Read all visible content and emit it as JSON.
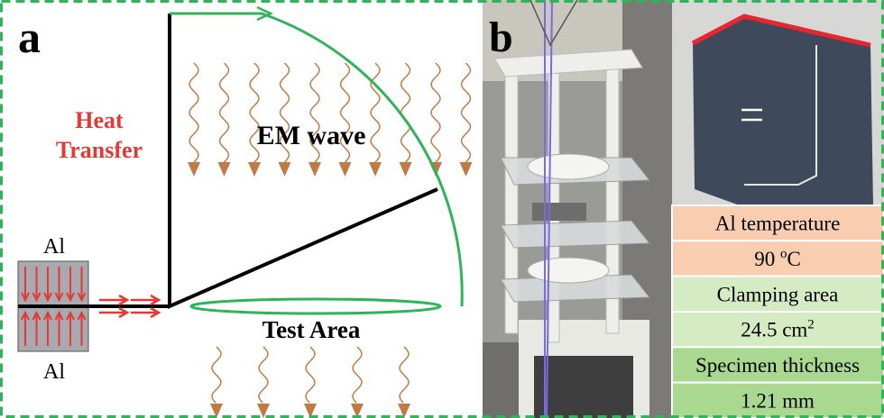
{
  "panel_a": {
    "label": "a",
    "heat_transfer": [
      "Heat",
      "Transfer"
    ],
    "em_wave": "EM wave",
    "test_area": "Test Area",
    "al_top": "Al",
    "al_bottom": "Al"
  },
  "panel_b": {
    "label": "b",
    "table": {
      "rows": [
        {
          "text": "Al temperature"
        },
        {
          "text": "90 ",
          "sup": "o",
          "tail": "C"
        },
        {
          "text": "Clamping area"
        },
        {
          "text": "24.5 cm",
          "sup": "2"
        },
        {
          "text": "Specimen thickness"
        },
        {
          "text": "1.21 mm"
        }
      ]
    }
  }
}
